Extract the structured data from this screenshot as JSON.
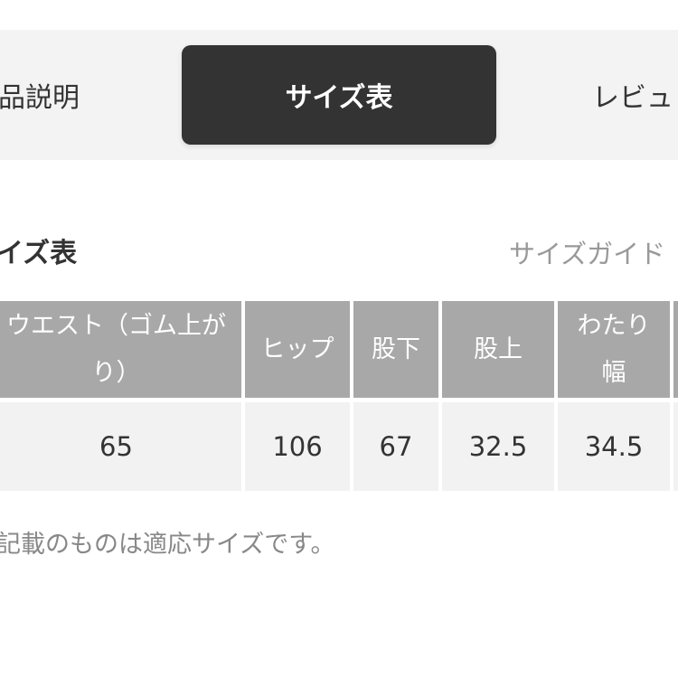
{
  "tabs": [
    {
      "label": "品説明",
      "active": false
    },
    {
      "label": "サイズ表",
      "active": true
    },
    {
      "label": "レビュ",
      "active": false
    }
  ],
  "section": {
    "title": "イズ表",
    "guide_link": "サイズガイド"
  },
  "table": {
    "headers": [
      "ウエスト（ゴム上がり）",
      "ヒップ",
      "股下",
      "股上",
      "わたり幅"
    ],
    "rows": [
      [
        "65",
        "106",
        "67",
        "32.5",
        "34.5"
      ]
    ]
  },
  "note": "記載のものは適応サイズです。",
  "colors": {
    "active_tab": "#333333",
    "header_bg": "#a8a8a8",
    "row_bg": "#f2f2f2"
  }
}
